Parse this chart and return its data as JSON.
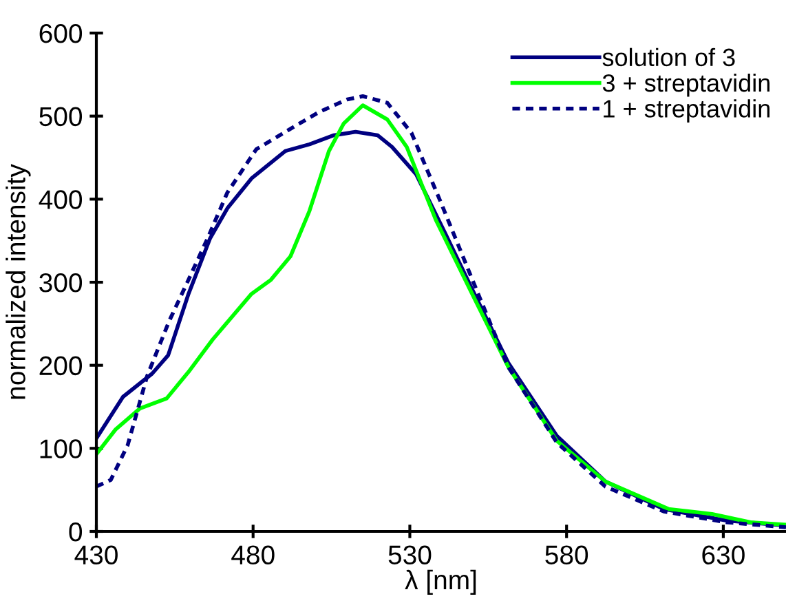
{
  "chart_data": {
    "type": "line",
    "xlabel": "λ [nm]",
    "ylabel": "normalized intensity",
    "xlim": [
      430,
      650
    ],
    "ylim": [
      0,
      600
    ],
    "xticks": [
      430,
      480,
      530,
      580,
      630
    ],
    "yticks": [
      0,
      100,
      200,
      300,
      400,
      500,
      600
    ],
    "grid": false,
    "legend": "top right",
    "series": [
      {
        "name": "solution of 3",
        "color": "#000080",
        "line_style": "solid",
        "x": [
          430,
          438.5,
          447.8,
          452.9,
          459.4,
          466.3,
          471.8,
          479.5,
          490.3,
          498,
          505.8,
          512.7,
          519.7,
          524.3,
          532,
          541.4,
          550.6,
          561.4,
          576.9,
          592.4,
          611,
          631,
          650
        ],
        "values": [
          112,
          162,
          190,
          212,
          286,
          353,
          389,
          425,
          458,
          466,
          477,
          481,
          477,
          463,
          430,
          358,
          286,
          203,
          115,
          60,
          27,
          13,
          7
        ]
      },
      {
        "name": "3 + streptavidin",
        "color": "#00ff00",
        "line_style": "solid",
        "x": [
          430,
          436.2,
          443.9,
          452.4,
          459.4,
          467.1,
          479.5,
          485.7,
          491.9,
          498,
          504.2,
          508.9,
          515,
          522.8,
          529,
          538.3,
          549.1,
          561.4,
          576.9,
          592.4,
          612.5,
          626.4,
          638.7,
          650
        ],
        "values": [
          93,
          123,
          148,
          160,
          192,
          231,
          286,
          303,
          331,
          386,
          458,
          491,
          513,
          496,
          463,
          375,
          292,
          198,
          109,
          60,
          27,
          21,
          11,
          8
        ]
      },
      {
        "name": "1 + streptavidin",
        "color": "#000080",
        "line_style": "dotted",
        "x": [
          430,
          434.6,
          440,
          446.2,
          453.2,
          459.4,
          465.5,
          471.8,
          481,
          493.4,
          501.1,
          510,
          515,
          522.8,
          530.5,
          539.8,
          550.6,
          561.4,
          576.9,
          592.4,
          611,
          631,
          650
        ],
        "values": [
          54,
          62,
          104,
          187,
          253,
          303,
          353,
          408,
          460,
          488,
          505,
          520,
          524,
          516,
          480,
          397,
          297,
          198,
          107,
          54,
          24,
          11,
          5
        ]
      }
    ]
  }
}
